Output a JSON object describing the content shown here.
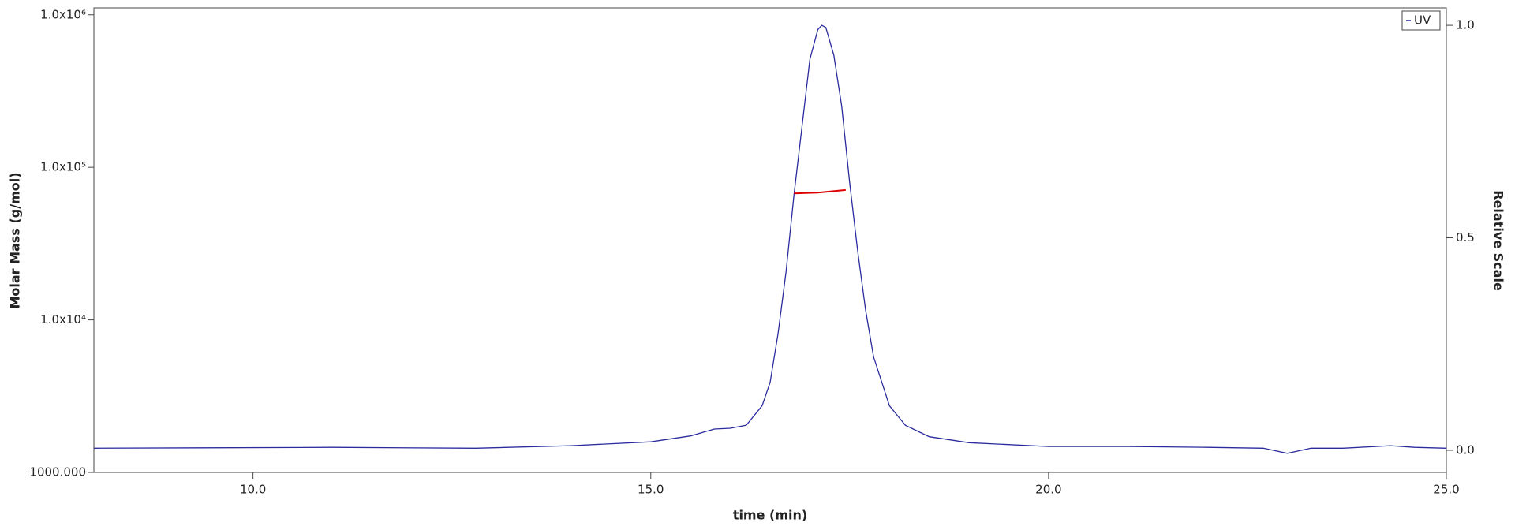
{
  "chart_data": {
    "type": "line",
    "xlabel": "time (min)",
    "ylabel": "Molar Mass (g/mol)",
    "y2label": "Relative Scale",
    "xlim": [
      8,
      25
    ],
    "xticks": [
      {
        "value": 10,
        "label": "10.0"
      },
      {
        "value": 15,
        "label": "15.0"
      },
      {
        "value": 20,
        "label": "20.0"
      },
      {
        "value": 25,
        "label": "25.0"
      }
    ],
    "ylog": true,
    "ylim": [
      1000,
      1110000
    ],
    "yticks": [
      {
        "value": 1000,
        "label": "1000.000"
      },
      {
        "value": 10000,
        "label": "1.0x10⁴"
      },
      {
        "value": 100000,
        "label": "1.0x10⁵"
      },
      {
        "value": 1000000,
        "label": "1.0x10⁶"
      }
    ],
    "y2lim": [
      -0.052,
      1.041
    ],
    "y2ticks": [
      {
        "value": 0,
        "label": "0.0"
      },
      {
        "value": 0.5,
        "label": "0.5"
      },
      {
        "value": 1,
        "label": "1.0"
      }
    ],
    "legend": "top-right",
    "series": [
      {
        "name": "UV",
        "color": "#2b2b9e",
        "axis": "y2",
        "x": [
          8.0,
          11.0,
          12.8,
          14.0,
          15.0,
          15.5,
          15.8,
          16.0,
          16.2,
          16.4,
          16.5,
          16.6,
          16.7,
          16.8,
          16.9,
          17.0,
          17.1,
          17.15,
          17.2,
          17.3,
          17.4,
          17.5,
          17.6,
          17.7,
          17.8,
          18.0,
          18.2,
          18.5,
          19.0,
          20.0,
          21.0,
          22.0,
          22.7,
          23.0,
          23.3,
          23.7,
          24.3,
          24.6,
          25.0
        ],
        "values": [
          0.005,
          0.007,
          0.005,
          0.011,
          0.02,
          0.034,
          0.05,
          0.052,
          0.059,
          0.105,
          0.16,
          0.275,
          0.42,
          0.6,
          0.76,
          0.92,
          0.99,
          1.0,
          0.995,
          0.93,
          0.81,
          0.63,
          0.47,
          0.33,
          0.22,
          0.105,
          0.059,
          0.032,
          0.018,
          0.009,
          0.009,
          0.007,
          0.005,
          -0.007,
          0.005,
          0.005,
          0.011,
          0.007,
          0.005
        ]
      },
      {
        "color": "#e00000",
        "axis": "y",
        "x": [
          16.8,
          17.1,
          17.45
        ],
        "values": [
          67500,
          68200,
          71000
        ]
      }
    ]
  }
}
